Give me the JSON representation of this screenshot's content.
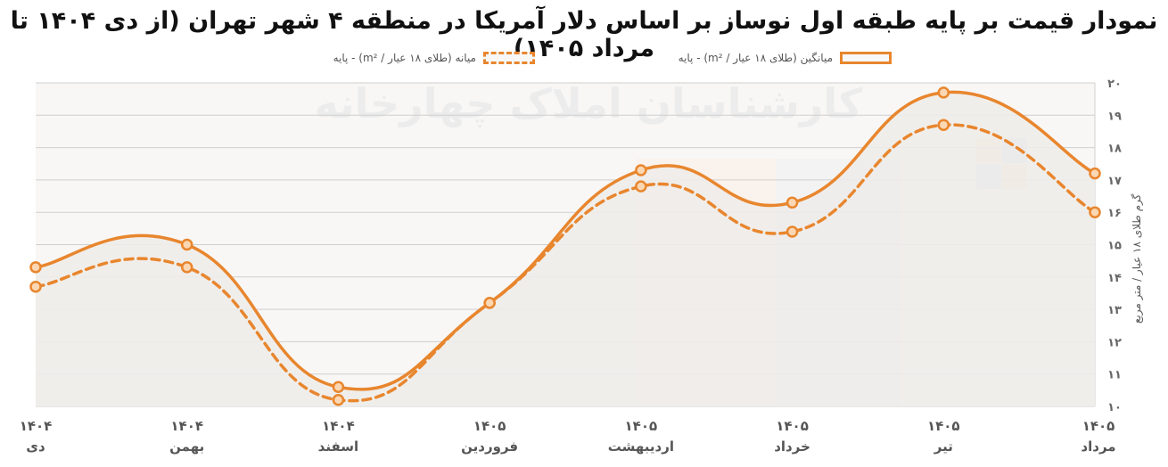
{
  "title": "نمودار قیمت بر پایه طبقه اول نوساز بر اساس دلار آمریکا  در منطقه ۴ شهر تهران (از دی ۱۴۰۴ تا مرداد ۱۴۰۵)",
  "watermark": "کارشناسان املاک چهارخانه",
  "chart_data": {
    "type": "line",
    "title": "نمودار قیمت بر پایه طبقه اول نوساز بر اساس دلار آمریکا  در منطقه ۴ شهر تهران (از دی ۱۴۰۴ تا مرداد ۱۴۰۵)",
    "ylabel": "گرم طلای ۱۸ عیار / متر مربع",
    "ylim": [
      10,
      20
    ],
    "yticks": [
      "۱۰",
      "۱۱",
      "۱۲",
      "۱۳",
      "۱۴",
      "۱۵",
      "۱۶",
      "۱۷",
      "۱۸",
      "۱۹",
      "۲۰"
    ],
    "grid": true,
    "legend_position": "top",
    "categories": [
      {
        "year": "۱۴۰۴",
        "month": "دی"
      },
      {
        "year": "۱۴۰۴",
        "month": "بهمن"
      },
      {
        "year": "۱۴۰۴",
        "month": "اسفند"
      },
      {
        "year": "۱۴۰۵",
        "month": "فروردین"
      },
      {
        "year": "۱۴۰۵",
        "month": "اردیبهشت"
      },
      {
        "year": "۱۴۰۵",
        "month": "خرداد"
      },
      {
        "year": "۱۴۰۵",
        "month": "تیر"
      },
      {
        "year": "۱۴۰۵",
        "month": "مرداد"
      }
    ],
    "series": [
      {
        "name": "میانگین (طلای ۱۸ عیار / m²) - پایه",
        "style": "solid",
        "color": "#E8862E",
        "values": [
          14.3,
          15.0,
          10.6,
          13.2,
          17.3,
          16.3,
          19.7,
          17.2
        ]
      },
      {
        "name": "میانه (طلای ۱۸ عیار / m²) - پایه",
        "style": "dashed",
        "color": "#E8862E",
        "values": [
          13.7,
          14.3,
          10.2,
          13.2,
          16.8,
          15.4,
          18.7,
          16.0
        ]
      }
    ]
  }
}
